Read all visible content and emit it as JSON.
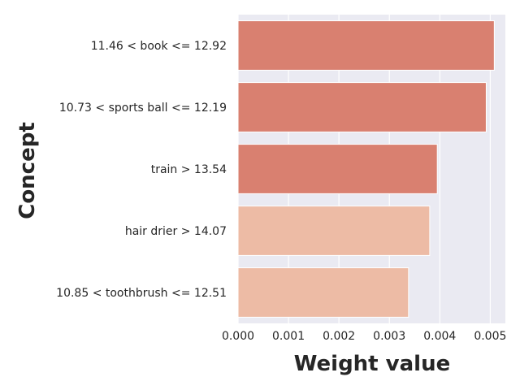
{
  "chart_data": {
    "type": "bar",
    "orientation": "horizontal",
    "title": "",
    "xlabel": "Weight value",
    "ylabel": "Concept",
    "xlim": [
      0,
      0.0053
    ],
    "grid": true,
    "legend": "none",
    "x_ticks": [
      "0.000",
      "0.001",
      "0.002",
      "0.003",
      "0.004",
      "0.005"
    ],
    "categories": [
      "11.46 < book <= 12.92",
      "10.73 < sports ball <= 12.19",
      "train > 13.54",
      "hair drier > 14.07",
      "10.85 < toothbrush <= 12.51"
    ],
    "values": [
      0.00508,
      0.00492,
      0.00395,
      0.0038,
      0.00338
    ],
    "bar_colors": [
      "#d98070",
      "#d98070",
      "#d98070",
      "#edbba5",
      "#edbba5"
    ],
    "background_color": "#eaeaf2",
    "grid_color": "#ffffff"
  }
}
